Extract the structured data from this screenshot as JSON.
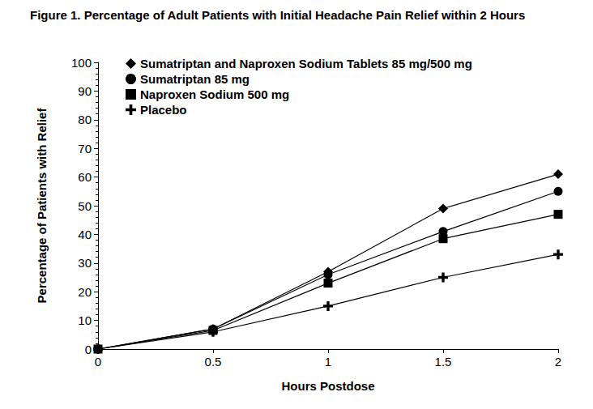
{
  "chart_data": {
    "type": "line",
    "title": "Figure 1. Percentage of Adult Patients with Initial Headache Pain Relief within 2 Hours",
    "x_label": "Hours Postdose",
    "y_label": "Percentage of Patients with Relief",
    "x": [
      0,
      0.5,
      1,
      1.5,
      2
    ],
    "xlim": [
      0,
      2
    ],
    "xticks": [
      0,
      0.5,
      1,
      1.5,
      2
    ],
    "ylim": [
      0,
      100
    ],
    "yticks": [
      0,
      10,
      20,
      30,
      40,
      50,
      60,
      70,
      80,
      90,
      100
    ],
    "grid": false,
    "legend": "upper left",
    "series": [
      {
        "name": "Sumatriptan and Naproxen Sodium Tablets 85 mg/500 mg",
        "color": "#000000",
        "marker": "diamond",
        "line_style": "solid",
        "values": [
          0,
          7,
          27,
          49,
          61
        ]
      },
      {
        "name": "Sumatriptan 85 mg",
        "color": "#000000",
        "marker": "circle",
        "line_style": "solid",
        "values": [
          0,
          7,
          26,
          41,
          55
        ]
      },
      {
        "name": "Naproxen Sodium 500 mg",
        "color": "#000000",
        "marker": "square",
        "line_style": "solid",
        "values": [
          0,
          6.5,
          23,
          38.5,
          47
        ]
      },
      {
        "name": "Placebo",
        "color": "#000000",
        "marker": "plus",
        "line_style": "solid",
        "values": [
          0,
          6,
          15,
          25,
          33
        ]
      }
    ]
  }
}
